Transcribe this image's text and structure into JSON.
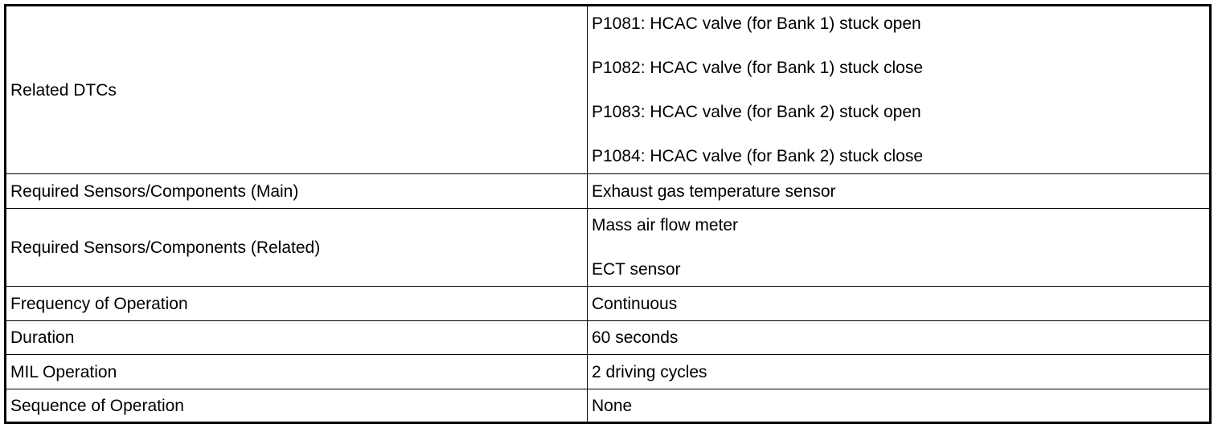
{
  "table": {
    "rows": [
      {
        "label": "Related DTCs",
        "values": [
          "P1081: HCAC valve (for Bank 1) stuck open",
          "P1082: HCAC valve (for Bank 1) stuck close",
          "P1083: HCAC valve (for Bank 2) stuck open",
          "P1084: HCAC valve (for Bank 2) stuck close"
        ]
      },
      {
        "label": "Required Sensors/Components (Main)",
        "values": [
          "Exhaust gas temperature sensor"
        ]
      },
      {
        "label": "Required Sensors/Components (Related)",
        "values": [
          "Mass air flow meter",
          "ECT sensor"
        ]
      },
      {
        "label": "Frequency of Operation",
        "values": [
          "Continuous"
        ]
      },
      {
        "label": "Duration",
        "values": [
          "60 seconds"
        ]
      },
      {
        "label": "MIL Operation",
        "values": [
          "2 driving cycles"
        ]
      },
      {
        "label": "Sequence of Operation",
        "values": [
          "None"
        ]
      }
    ]
  }
}
